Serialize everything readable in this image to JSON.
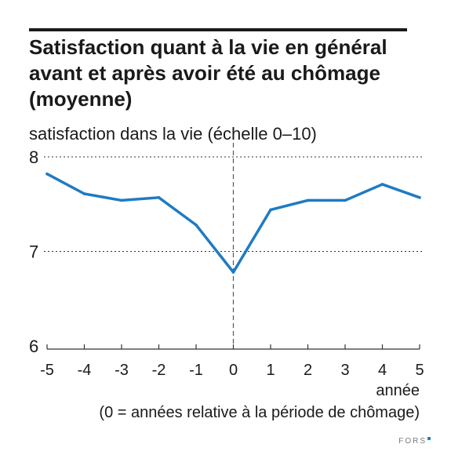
{
  "chart_data": {
    "type": "line",
    "title": "Satisfaction quant à la vie en général\navant et après avoir été au chômage\n(moyenne)",
    "ylabel": "satisfaction dans la vie (échelle 0–10)",
    "xlabel": "année",
    "xnote": "(0 = années relative à la période de chômage)",
    "x": [
      -5,
      -4,
      -3,
      -2,
      -1,
      0,
      1,
      2,
      3,
      4,
      5
    ],
    "xtick_labels": [
      "-5",
      "-4",
      "-3",
      "-2",
      "-1",
      "0",
      "1",
      "2",
      "3",
      "4",
      "5"
    ],
    "ytick_values": [
      6,
      7,
      8
    ],
    "ytick_labels": [
      "6",
      "7",
      "8"
    ],
    "ylim": [
      6,
      8
    ],
    "series": [
      {
        "values": [
          7.82,
          7.61,
          7.54,
          7.57,
          7.28,
          6.78,
          7.44,
          7.54,
          7.54,
          7.71,
          7.57
        ]
      }
    ],
    "colors": {
      "line": "#1f7bc3",
      "grid": "#333333",
      "text": "#1a1a1a"
    },
    "grid": "horizontal dotted",
    "reference_line_x": 0
  },
  "logo_text": "FORS"
}
